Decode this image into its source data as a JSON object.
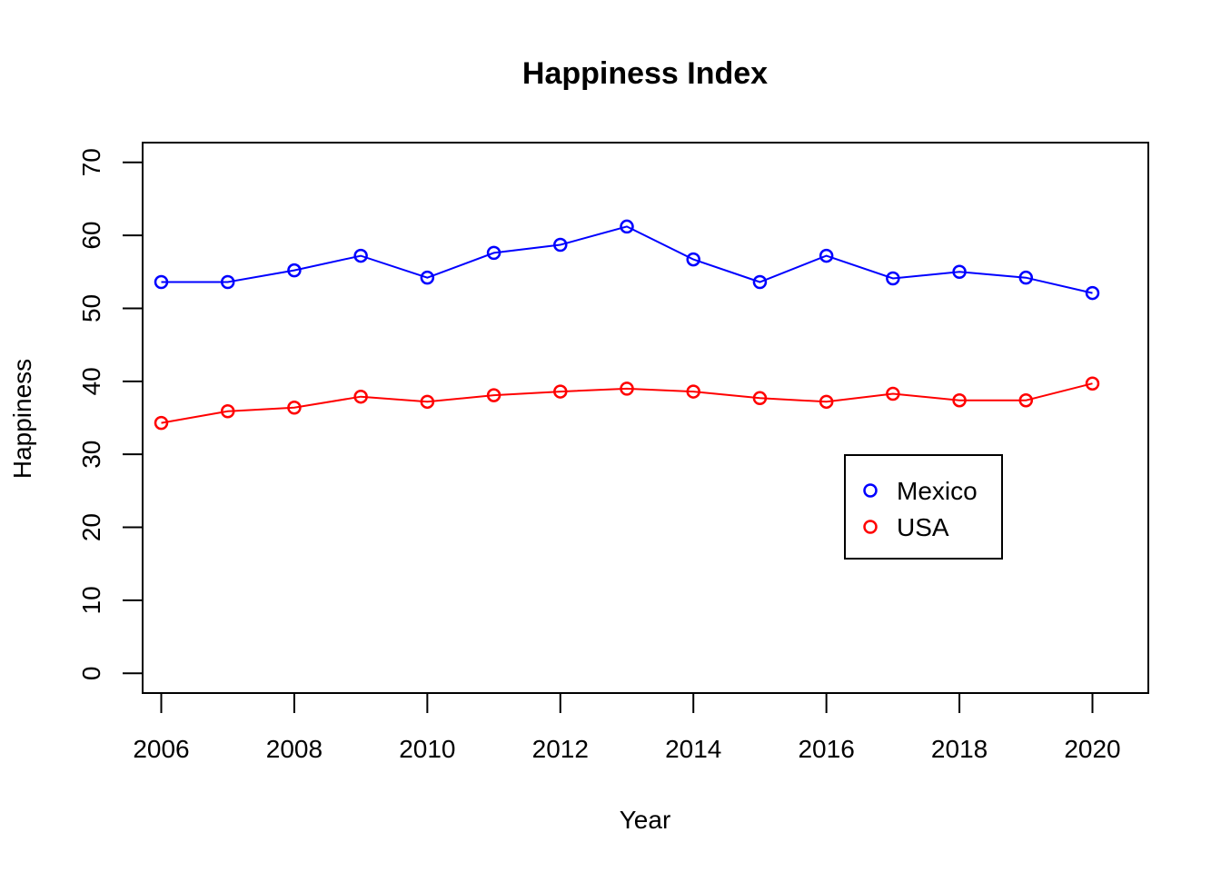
{
  "chart_data": {
    "type": "line",
    "title": "Happiness Index",
    "xlabel": "Year",
    "ylabel": "Happiness",
    "x": [
      2006,
      2007,
      2008,
      2009,
      2010,
      2011,
      2012,
      2013,
      2014,
      2015,
      2016,
      2017,
      2018,
      2019,
      2020
    ],
    "xlim": [
      2005.72,
      2020.84
    ],
    "ylim": [
      -2.7,
      72.7
    ],
    "x_ticks": [
      2006,
      2008,
      2010,
      2012,
      2014,
      2016,
      2018,
      2020
    ],
    "x_tick_labels": [
      "2006",
      "2008",
      "2010",
      "2012",
      "2014",
      "2016",
      "2018",
      "2020"
    ],
    "y_ticks": [
      0,
      10,
      20,
      30,
      40,
      50,
      60,
      70
    ],
    "y_tick_labels": [
      "0",
      "10",
      "20",
      "30",
      "40",
      "50",
      "60",
      "70"
    ],
    "grid": false,
    "legend_position": "right",
    "series": [
      {
        "name": "Mexico",
        "color": "#0000ff",
        "values": [
          53.6,
          53.6,
          55.2,
          57.2,
          54.2,
          57.6,
          58.7,
          61.2,
          56.7,
          53.6,
          57.2,
          54.1,
          55.0,
          54.2,
          52.1
        ]
      },
      {
        "name": "USA",
        "color": "#ff0000",
        "values": [
          34.3,
          35.9,
          36.4,
          37.9,
          37.2,
          38.1,
          38.6,
          39.0,
          38.6,
          37.7,
          37.2,
          38.3,
          37.4,
          37.4,
          39.7
        ]
      }
    ],
    "legend_symbol": "o"
  }
}
